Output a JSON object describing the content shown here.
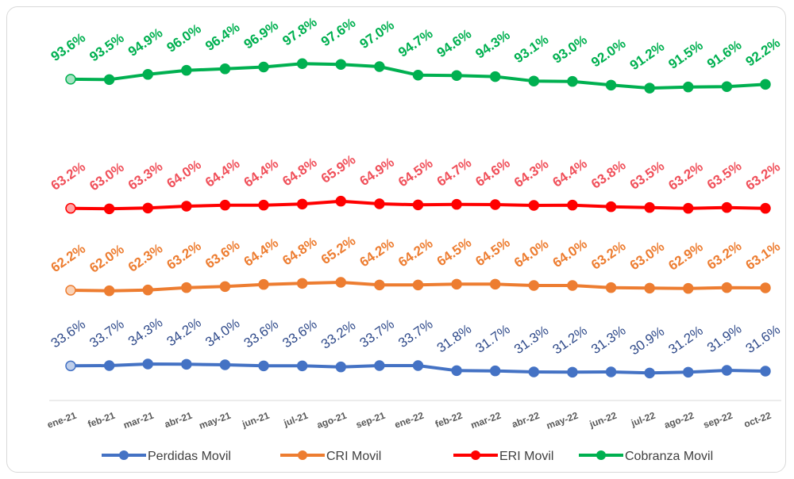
{
  "chart_data": {
    "type": "line",
    "title": "",
    "xlabel": "",
    "ylabel": "",
    "grid": false,
    "legend_position": "bottom",
    "categories": [
      "ene-21",
      "feb-21",
      "mar-21",
      "abr-21",
      "may-21",
      "jun-21",
      "jul-21",
      "ago-21",
      "sep-21",
      "ene-22",
      "feb-22",
      "mar-22",
      "abr-22",
      "may-22",
      "jun-22",
      "jul-22",
      "ago-22",
      "sep-22",
      "oct-22"
    ],
    "series": [
      {
        "name": "Perdidas Movil",
        "color": "#4472C4",
        "label_color": "#2F4A8A",
        "label_bold": false,
        "values": [
          33.6,
          33.7,
          34.3,
          34.2,
          34.0,
          33.6,
          33.6,
          33.2,
          33.7,
          33.7,
          31.8,
          31.7,
          31.3,
          31.2,
          31.3,
          30.9,
          31.2,
          31.9,
          31.6
        ],
        "labels": [
          "33.6%",
          "33.7%",
          "34.3%",
          "34.2%",
          "34.0%",
          "33.6%",
          "33.6%",
          "33.2%",
          "33.7%",
          "33.7%",
          "31.8%",
          "31.7%",
          "31.3%",
          "31.2%",
          "31.3%",
          "30.9%",
          "31.2%",
          "31.9%",
          "31.6%"
        ]
      },
      {
        "name": "CRI Movil",
        "color": "#ED7D31",
        "label_color": "#ED7D31",
        "label_bold": true,
        "values": [
          62.2,
          62.0,
          62.3,
          63.2,
          63.6,
          64.4,
          64.8,
          65.2,
          64.2,
          64.2,
          64.5,
          64.5,
          64.0,
          64.0,
          63.2,
          63.0,
          62.9,
          63.2,
          63.1
        ],
        "labels": [
          "62.2%",
          "62.0%",
          "62.3%",
          "63.2%",
          "63.6%",
          "64.4%",
          "64.8%",
          "65.2%",
          "64.2%",
          "64.2%",
          "64.5%",
          "64.5%",
          "64.0%",
          "64.0%",
          "63.2%",
          "63.0%",
          "62.9%",
          "63.2%",
          "63.1%"
        ]
      },
      {
        "name": "ERI Movil",
        "color": "#FF0000",
        "label_color": "#F0505A",
        "label_bold": true,
        "values": [
          63.2,
          63.0,
          63.3,
          64.0,
          64.4,
          64.4,
          64.8,
          65.9,
          64.9,
          64.5,
          64.7,
          64.6,
          64.3,
          64.4,
          63.8,
          63.5,
          63.2,
          63.5,
          63.2
        ],
        "labels": [
          "63.2%",
          "63.0%",
          "63.3%",
          "64.0%",
          "64.4%",
          "64.4%",
          "64.8%",
          "65.9%",
          "64.9%",
          "64.5%",
          "64.7%",
          "64.6%",
          "64.3%",
          "64.4%",
          "63.8%",
          "63.5%",
          "63.2%",
          "63.5%",
          "63.2%"
        ]
      },
      {
        "name": "Cobranza Movil",
        "color": "#00B050",
        "label_color": "#00B050",
        "label_bold": true,
        "values": [
          93.6,
          93.5,
          94.9,
          96.0,
          96.4,
          96.9,
          97.8,
          97.6,
          97.0,
          94.7,
          94.6,
          94.3,
          93.1,
          93.0,
          92.0,
          91.2,
          91.5,
          91.6,
          92.2
        ],
        "labels": [
          "93.6%",
          "93.5%",
          "94.9%",
          "96.0%",
          "96.4%",
          "96.9%",
          "97.8%",
          "97.6%",
          "97.0%",
          "94.7%",
          "94.6%",
          "94.3%",
          "93.1%",
          "93.0%",
          "92.0%",
          "91.2%",
          "91.5%",
          "91.6%",
          "92.2%"
        ]
      }
    ]
  }
}
